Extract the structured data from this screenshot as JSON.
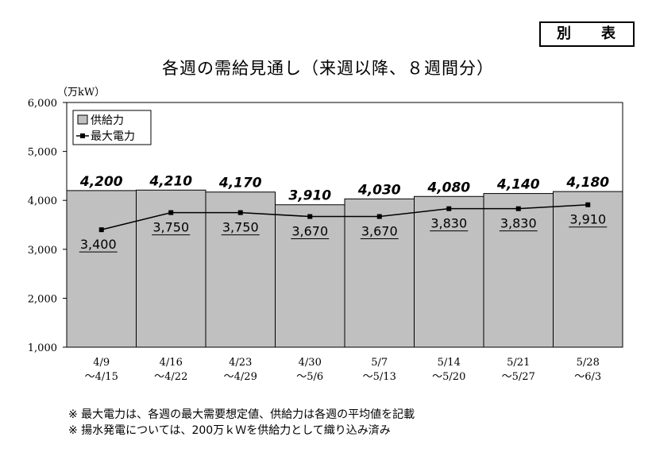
{
  "badge": "別　表",
  "chart_data": {
    "type": "bar",
    "title": "各週の需給見通し（来週以降、８週間分）",
    "unit_label": "（万kW）",
    "categories": [
      {
        "top": "4/9",
        "bottom": "～4/15"
      },
      {
        "top": "4/16",
        "bottom": "～4/22"
      },
      {
        "top": "4/23",
        "bottom": "～4/29"
      },
      {
        "top": "4/30",
        "bottom": "～5/6"
      },
      {
        "top": "5/7",
        "bottom": "～5/13"
      },
      {
        "top": "5/14",
        "bottom": "～5/20"
      },
      {
        "top": "5/21",
        "bottom": "～5/27"
      },
      {
        "top": "5/28",
        "bottom": "～6/3"
      }
    ],
    "series": [
      {
        "name": "供給力",
        "type": "bar",
        "color": "#c0c0c0",
        "values": [
          4200,
          4210,
          4170,
          3910,
          4030,
          4080,
          4140,
          4180
        ],
        "labels": [
          "4,200",
          "4,210",
          "4,170",
          "3,910",
          "4,030",
          "4,080",
          "4,140",
          "4,180"
        ]
      },
      {
        "name": "最大電力",
        "type": "line",
        "color": "#000000",
        "values": [
          3400,
          3750,
          3750,
          3670,
          3670,
          3830,
          3830,
          3910
        ],
        "labels": [
          "3,400",
          "3,750",
          "3,750",
          "3,670",
          "3,670",
          "3,830",
          "3,830",
          "3,910"
        ]
      }
    ],
    "ylim": [
      1000,
      6000
    ],
    "yticks": [
      1000,
      2000,
      3000,
      4000,
      5000,
      6000
    ],
    "ytick_labels": [
      "1,000",
      "2,000",
      "3,000",
      "4,000",
      "5,000",
      "6,000"
    ],
    "plot_background": "#ffffff",
    "legend": "top-left",
    "grid": false
  },
  "notes": [
    "※ 最大電力は、各週の最大需要想定値、供給力は各週の平均値を記載",
    "※ 揚水発電については、200万ｋＷを供給力として織り込み済み"
  ]
}
